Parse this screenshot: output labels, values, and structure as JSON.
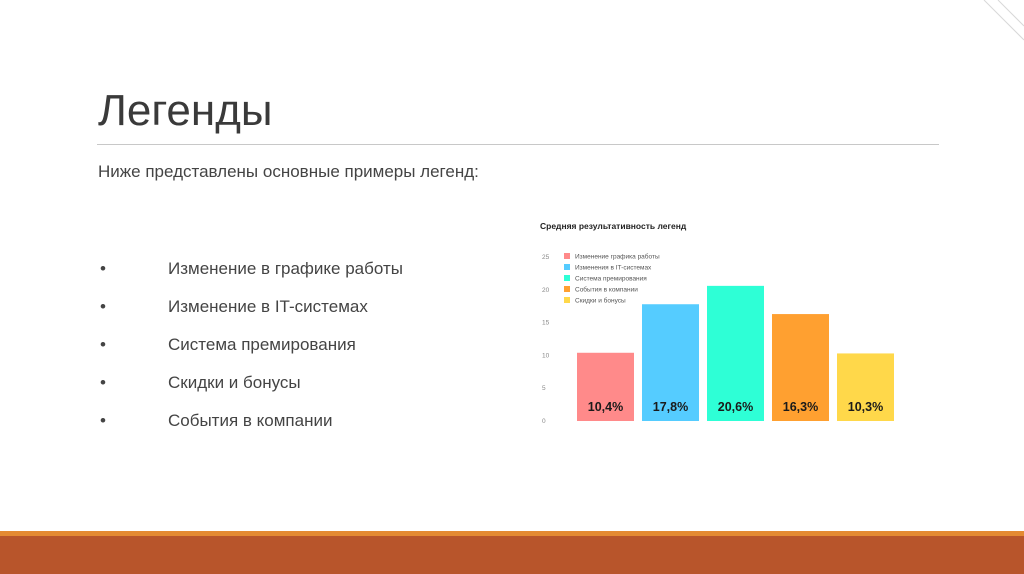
{
  "slide": {
    "title": "Легенды",
    "intro": "Ниже представлены основные примеры легенд:",
    "bullet_symbol": "•",
    "bullets": [
      "Изменение в графике работы",
      "Изменение в IT-системах",
      "Система премирования",
      "Скидки и бонусы",
      "События в компании"
    ],
    "colors": {
      "accent_band": "#b8552b",
      "accent_band_top": "#e48a32"
    }
  },
  "chart_data": {
    "type": "bar",
    "title": "Средняя результативность легенд",
    "categories": [
      "Изменение графика работы",
      "Изменения в IT-системах",
      "Система премирования",
      "События в компании",
      "Скидки и бонусы"
    ],
    "values": [
      10.4,
      17.8,
      20.6,
      16.3,
      10.3
    ],
    "value_labels": [
      "10,4%",
      "17,8%",
      "20,6%",
      "16,3%",
      "10,3%"
    ],
    "colors": [
      "#ff8a8a",
      "#55ccff",
      "#2effd6",
      "#ffa030",
      "#ffd84a"
    ],
    "ylim": [
      0,
      25
    ],
    "yticks": [
      0,
      5,
      10,
      15,
      20,
      25
    ],
    "legend_position": "top-left",
    "grid": false
  }
}
